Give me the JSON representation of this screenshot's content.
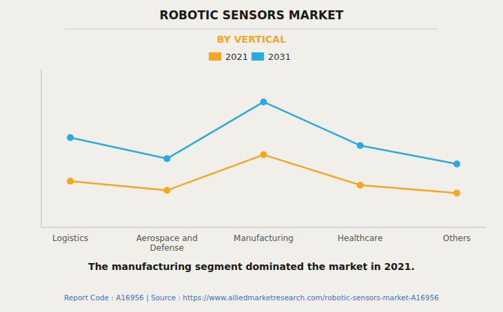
{
  "chart_data": {
    "type": "line",
    "title": "ROBOTIC SENSORS MARKET",
    "subtitle": "BY VERTICAL",
    "categories": [
      "Logistics",
      "Aerospace and\nDefense",
      "Manufacturing",
      "Healthcare",
      "Others"
    ],
    "series": [
      {
        "name": "2021",
        "color": "#F5A623",
        "values": [
          3.5,
          2.8,
          5.5,
          3.2,
          2.6
        ],
        "marker": "circle"
      },
      {
        "name": "2031",
        "color": "#29ABE2",
        "values": [
          6.8,
          5.2,
          9.5,
          6.2,
          4.8
        ],
        "marker": "circle"
      }
    ],
    "ylim": [
      0,
      12
    ],
    "grid": false,
    "tick_labels": "x",
    "legend": "top",
    "annotations": [
      "The manufacturing segment dominated the market in 2021.",
      "Report Code : A16956  |  Source : https://www.alliedmarketresearch.com/robotic-sensors-market-A16956"
    ]
  }
}
